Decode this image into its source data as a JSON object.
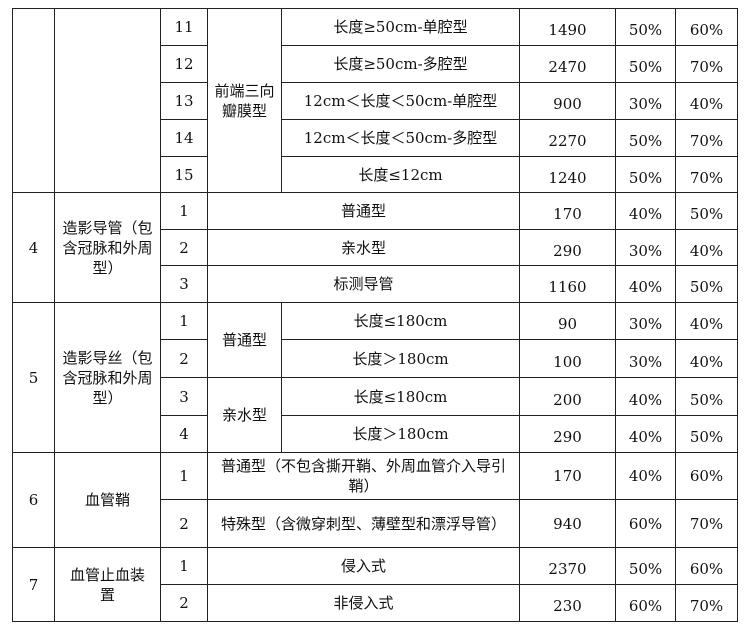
{
  "rows_top": [
    {
      "no": "11",
      "desc": "长度≥50cm-单腔型",
      "price": "1490",
      "p1": "50%",
      "p2": "60%"
    },
    {
      "no": "12",
      "desc": "长度≥50cm-多腔型",
      "price": "2470",
      "p1": "50%",
      "p2": "70%"
    },
    {
      "no": "13",
      "desc": "12cm＜长度＜50cm-单腔型",
      "price": "900",
      "p1": "30%",
      "p2": "40%"
    },
    {
      "no": "14",
      "desc": "12cm＜长度＜50cm-多腔型",
      "price": "2270",
      "p1": "50%",
      "p2": "70%"
    },
    {
      "no": "15",
      "desc": "长度≤12cm",
      "price": "1240",
      "p1": "50%",
      "p2": "70%"
    }
  ],
  "top_subgroup": "前端三向瓣膜型",
  "g4": {
    "id": "4",
    "name": "造影导管（包含冠脉和外周型）",
    "rows": [
      {
        "no": "1",
        "desc": "普通型",
        "price": "170",
        "p1": "40%",
        "p2": "50%"
      },
      {
        "no": "2",
        "desc": "亲水型",
        "price": "290",
        "p1": "30%",
        "p2": "40%"
      },
      {
        "no": "3",
        "desc": "标测导管",
        "price": "1160",
        "p1": "40%",
        "p2": "50%"
      }
    ]
  },
  "g5": {
    "id": "5",
    "name": "造影导丝（包含冠脉和外周型）",
    "sub1": "普通型",
    "sub2": "亲水型",
    "rows": [
      {
        "no": "1",
        "desc": "长度≤180cm",
        "price": "90",
        "p1": "30%",
        "p2": "40%"
      },
      {
        "no": "2",
        "desc": "长度＞180cm",
        "price": "100",
        "p1": "30%",
        "p2": "40%"
      },
      {
        "no": "3",
        "desc": "长度≤180cm",
        "price": "200",
        "p1": "40%",
        "p2": "50%"
      },
      {
        "no": "4",
        "desc": "长度＞180cm",
        "price": "290",
        "p1": "40%",
        "p2": "50%"
      }
    ]
  },
  "g6": {
    "id": "6",
    "name": "血管鞘",
    "rows": [
      {
        "no": "1",
        "desc": "普通型（不包含撕开鞘、外周血管介入导引鞘）",
        "price": "170",
        "p1": "40%",
        "p2": "60%"
      },
      {
        "no": "2",
        "desc": "特殊型（含微穿刺型、薄壁型和漂浮导管）",
        "price": "940",
        "p1": "60%",
        "p2": "70%"
      }
    ]
  },
  "g7": {
    "id": "7",
    "name": "血管止血装置",
    "rows": [
      {
        "no": "1",
        "desc": "侵入式",
        "price": "2370",
        "p1": "50%",
        "p2": "60%"
      },
      {
        "no": "2",
        "desc": "非侵入式",
        "price": "230",
        "p1": "60%",
        "p2": "70%"
      }
    ]
  }
}
